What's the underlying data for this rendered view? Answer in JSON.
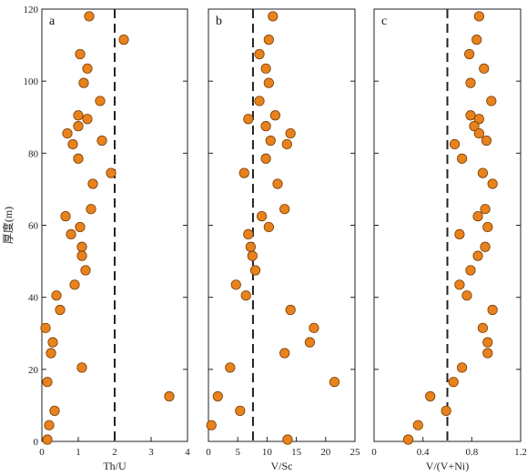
{
  "chart_data": {
    "type": "scatter",
    "y_axis": {
      "label": "厚度(m)",
      "ylim": [
        0,
        120
      ],
      "ticks": [
        0,
        20,
        40,
        60,
        80,
        100,
        120
      ]
    },
    "panels": [
      {
        "panel_label": "a",
        "xlabel": "Th/U",
        "xlim": [
          0,
          4
        ],
        "xticks": [
          0,
          1,
          2,
          3,
          4
        ],
        "reference_line_x": 2,
        "points": [
          [
            1.3,
            118
          ],
          [
            2.25,
            111.5
          ],
          [
            1.05,
            107.5
          ],
          [
            1.25,
            103.5
          ],
          [
            1.15,
            99.5
          ],
          [
            1.6,
            94.5
          ],
          [
            1.0,
            90.5
          ],
          [
            1.25,
            89.5
          ],
          [
            1.0,
            87.5
          ],
          [
            0.7,
            85.5
          ],
          [
            1.65,
            83.5
          ],
          [
            0.85,
            82.5
          ],
          [
            1.0,
            78.5
          ],
          [
            1.9,
            74.5
          ],
          [
            1.4,
            71.5
          ],
          [
            1.35,
            64.5
          ],
          [
            0.65,
            62.5
          ],
          [
            1.05,
            59.5
          ],
          [
            0.8,
            57.5
          ],
          [
            1.1,
            54
          ],
          [
            1.1,
            51.5
          ],
          [
            1.2,
            47.5
          ],
          [
            0.9,
            43.5
          ],
          [
            0.4,
            40.5
          ],
          [
            0.5,
            36.5
          ],
          [
            0.1,
            31.5
          ],
          [
            0.3,
            27.5
          ],
          [
            0.25,
            24.5
          ],
          [
            1.1,
            20.5
          ],
          [
            0.15,
            16.5
          ],
          [
            3.5,
            12.5
          ],
          [
            0.35,
            8.5
          ],
          [
            0.2,
            4.5
          ],
          [
            0.15,
            0.5
          ]
        ]
      },
      {
        "panel_label": "b",
        "xlabel": "V/Sc",
        "xlim": [
          0,
          25
        ],
        "xticks": [
          0,
          5,
          10,
          15,
          20,
          25
        ],
        "reference_line_x": 7.6,
        "points": [
          [
            11,
            118
          ],
          [
            10.3,
            111.5
          ],
          [
            8.7,
            107.5
          ],
          [
            9.8,
            103.5
          ],
          [
            10.3,
            99.5
          ],
          [
            8.7,
            94.5
          ],
          [
            11.4,
            90.5
          ],
          [
            6.8,
            89.5
          ],
          [
            9.8,
            87.5
          ],
          [
            14,
            85.5
          ],
          [
            10.6,
            83.5
          ],
          [
            13.4,
            82.5
          ],
          [
            9.8,
            78.5
          ],
          [
            6.1,
            74.5
          ],
          [
            11.8,
            71.5
          ],
          [
            13,
            64.5
          ],
          [
            9.1,
            62.5
          ],
          [
            10.3,
            59.5
          ],
          [
            6.8,
            57.5
          ],
          [
            7.2,
            54
          ],
          [
            7.5,
            51.5
          ],
          [
            8,
            47.5
          ],
          [
            4.7,
            43.5
          ],
          [
            6.4,
            40.5
          ],
          [
            14,
            36.5
          ],
          [
            18,
            31.5
          ],
          [
            17.3,
            27.5
          ],
          [
            13,
            24.5
          ],
          [
            3.7,
            20.5
          ],
          [
            21.5,
            16.5
          ],
          [
            1.6,
            12.5
          ],
          [
            5.4,
            8.5
          ],
          [
            0.5,
            4.5
          ],
          [
            13.5,
            0.5
          ]
        ]
      },
      {
        "panel_label": "c",
        "xlabel": "V/(V+Ni)",
        "xlim": [
          0,
          1.2
        ],
        "xticks": [
          0,
          0.4,
          0.8,
          1.2
        ],
        "reference_line_x": 0.6,
        "points": [
          [
            0.86,
            118
          ],
          [
            0.84,
            111.5
          ],
          [
            0.78,
            107.5
          ],
          [
            0.9,
            103.5
          ],
          [
            0.79,
            99.5
          ],
          [
            0.96,
            94.5
          ],
          [
            0.79,
            90.5
          ],
          [
            0.86,
            89.5
          ],
          [
            0.82,
            87.5
          ],
          [
            0.86,
            85.5
          ],
          [
            0.92,
            83.5
          ],
          [
            0.66,
            82.5
          ],
          [
            0.72,
            78.5
          ],
          [
            0.89,
            74.5
          ],
          [
            0.97,
            71.5
          ],
          [
            0.91,
            64.5
          ],
          [
            0.85,
            62.5
          ],
          [
            0.93,
            59.5
          ],
          [
            0.7,
            57.5
          ],
          [
            0.91,
            54
          ],
          [
            0.85,
            51.5
          ],
          [
            0.79,
            47.5
          ],
          [
            0.7,
            43.5
          ],
          [
            0.76,
            40.5
          ],
          [
            0.97,
            36.5
          ],
          [
            0.89,
            31.5
          ],
          [
            0.93,
            27.5
          ],
          [
            0.93,
            24.5
          ],
          [
            0.72,
            20.5
          ],
          [
            0.65,
            16.5
          ],
          [
            0.46,
            12.5
          ],
          [
            0.59,
            8.5
          ],
          [
            0.36,
            4.5
          ],
          [
            0.28,
            0.5
          ]
        ]
      }
    ]
  }
}
